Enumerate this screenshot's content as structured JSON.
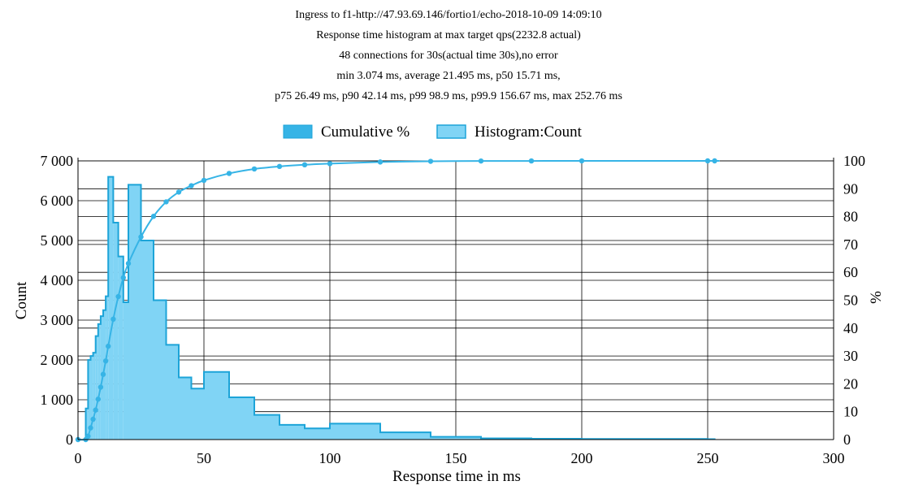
{
  "chart_data": {
    "type": "bar",
    "title_lines": [
      "Ingress to f1-http://47.93.69.146/fortio1/echo-2018-10-09 14:09:10",
      "Response time histogram at max target qps(2232.8 actual)",
      "48 connections for 30s(actual time 30s),no error",
      "min 3.074 ms, average 21.495 ms, p50 15.71 ms,",
      "p75 26.49 ms, p90 42.14 ms, p99 98.9 ms, p99.9 156.67 ms, max 252.76 ms"
    ],
    "xlabel": "Response time in ms",
    "ylabel_left": "Count",
    "ylabel_right": "%",
    "xlim": [
      0,
      300
    ],
    "ylim_left": [
      0,
      7000
    ],
    "ylim_right": [
      0,
      100
    ],
    "x_ticks": [
      0,
      50,
      100,
      150,
      200,
      250,
      300
    ],
    "x_tick_labels": [
      "0",
      "50",
      "100",
      "150",
      "200",
      "250",
      "300"
    ],
    "y_left_ticks": [
      0,
      1000,
      2000,
      3000,
      4000,
      5000,
      6000,
      7000
    ],
    "y_left_tick_labels": [
      "0",
      "1 000",
      "2 000",
      "3 000",
      "4 000",
      "5 000",
      "6 000",
      "7 000"
    ],
    "y_right_ticks": [
      0,
      10,
      20,
      30,
      40,
      50,
      60,
      70,
      80,
      90,
      100
    ],
    "y_right_tick_labels": [
      "0",
      "10",
      "20",
      "30",
      "40",
      "50",
      "60",
      "70",
      "80",
      "90",
      "100"
    ],
    "grid": true,
    "legend_position": "top-center",
    "legend": [
      "Cumulative %",
      "Histogram:Count"
    ],
    "colors": {
      "cumulative": "#36b4e6",
      "histogram_fill": "#80d4f5",
      "histogram_stroke": "#1da4d8",
      "grid": "#000000"
    },
    "series": [
      {
        "name": "Histogram:Count",
        "type": "step-area",
        "bins": [
          [
            3.074,
            4,
            780
          ],
          [
            4,
            5,
            2000
          ],
          [
            5,
            6,
            2100
          ],
          [
            6,
            7,
            2180
          ],
          [
            7,
            8,
            2600
          ],
          [
            8,
            9,
            2900
          ],
          [
            9,
            10,
            3100
          ],
          [
            10,
            11,
            3250
          ],
          [
            11,
            12,
            3600
          ],
          [
            12,
            14,
            6600
          ],
          [
            14,
            16,
            5450
          ],
          [
            16,
            18,
            4600
          ],
          [
            18,
            20,
            3450
          ],
          [
            20,
            25,
            6400
          ],
          [
            25,
            30,
            5000
          ],
          [
            30,
            35,
            3500
          ],
          [
            35,
            40,
            2380
          ],
          [
            40,
            45,
            1560
          ],
          [
            45,
            50,
            1280
          ],
          [
            50,
            60,
            1700
          ],
          [
            60,
            70,
            1060
          ],
          [
            70,
            80,
            620
          ],
          [
            80,
            90,
            370
          ],
          [
            90,
            100,
            280
          ],
          [
            100,
            120,
            400
          ],
          [
            120,
            140,
            180
          ],
          [
            140,
            160,
            70
          ],
          [
            160,
            180,
            30
          ],
          [
            180,
            200,
            20
          ],
          [
            200,
            250,
            15
          ],
          [
            250,
            252.76,
            10
          ]
        ]
      },
      {
        "name": "Cumulative %",
        "type": "line",
        "x": [
          0,
          3.074,
          4,
          5,
          6,
          7,
          8,
          9,
          10,
          11,
          12,
          14,
          16,
          18,
          20,
          25,
          30,
          35,
          40,
          45,
          50,
          60,
          70,
          80,
          90,
          100,
          120,
          140,
          160,
          180,
          200,
          250,
          252.76
        ],
        "y": [
          0,
          0,
          1.2,
          4.2,
          7.3,
          10.6,
          14.5,
          18.8,
          23.4,
          28.2,
          33.5,
          43.2,
          51.3,
          58.1,
          63.2,
          72.7,
          80.1,
          85.3,
          88.8,
          91.1,
          93.0,
          95.5,
          97.1,
          98.0,
          98.6,
          99.0,
          99.6,
          99.85,
          99.95,
          99.98,
          99.99,
          100,
          100
        ]
      }
    ]
  }
}
